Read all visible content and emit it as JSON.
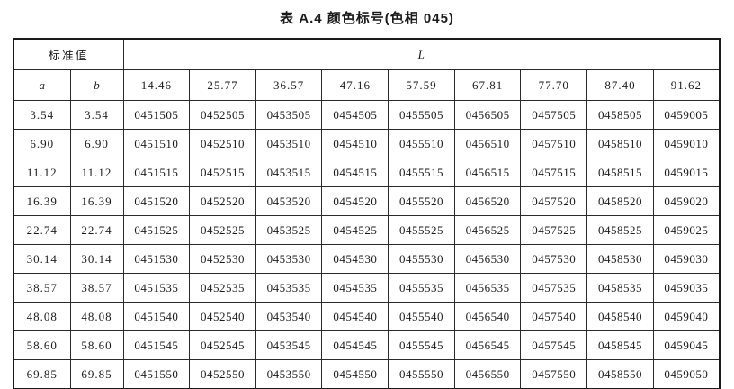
{
  "title": "表 A.4  颜色标号(色相 045)",
  "table": {
    "std_header": "标准值",
    "l_header": "L",
    "a_header": "a",
    "b_header": "b",
    "l_values": [
      "14.46",
      "25.77",
      "36.57",
      "47.16",
      "57.59",
      "67.81",
      "77.70",
      "87.40",
      "91.62"
    ],
    "rows": [
      {
        "a": "3.54",
        "b": "3.54",
        "codes": [
          "0451505",
          "0452505",
          "0453505",
          "0454505",
          "0455505",
          "0456505",
          "0457505",
          "0458505",
          "0459005"
        ]
      },
      {
        "a": "6.90",
        "b": "6.90",
        "codes": [
          "0451510",
          "0452510",
          "0453510",
          "0454510",
          "0455510",
          "0456510",
          "0457510",
          "0458510",
          "0459010"
        ]
      },
      {
        "a": "11.12",
        "b": "11.12",
        "codes": [
          "0451515",
          "0452515",
          "0453515",
          "0454515",
          "0455515",
          "0456515",
          "0457515",
          "0458515",
          "0459015"
        ]
      },
      {
        "a": "16.39",
        "b": "16.39",
        "codes": [
          "0451520",
          "0452520",
          "0453520",
          "0454520",
          "0455520",
          "0456520",
          "0457520",
          "0458520",
          "0459020"
        ]
      },
      {
        "a": "22.74",
        "b": "22.74",
        "codes": [
          "0451525",
          "0452525",
          "0453525",
          "0454525",
          "0455525",
          "0456525",
          "0457525",
          "0458525",
          "0459025"
        ]
      },
      {
        "a": "30.14",
        "b": "30.14",
        "codes": [
          "0451530",
          "0452530",
          "0453530",
          "0454530",
          "0455530",
          "0456530",
          "0457530",
          "0458530",
          "0459030"
        ]
      },
      {
        "a": "38.57",
        "b": "38.57",
        "codes": [
          "0451535",
          "0452535",
          "0453535",
          "0454535",
          "0455535",
          "0456535",
          "0457535",
          "0458535",
          "0459035"
        ]
      },
      {
        "a": "48.08",
        "b": "48.08",
        "codes": [
          "0451540",
          "0452540",
          "0453540",
          "0454540",
          "0455540",
          "0456540",
          "0457540",
          "0458540",
          "0459040"
        ]
      },
      {
        "a": "58.60",
        "b": "58.60",
        "codes": [
          "0451545",
          "0452545",
          "0453545",
          "0454545",
          "0455545",
          "0456545",
          "0457545",
          "0458545",
          "0459045"
        ]
      },
      {
        "a": "69.85",
        "b": "69.85",
        "codes": [
          "0451550",
          "0452550",
          "0453550",
          "0454550",
          "0455550",
          "0456550",
          "0457550",
          "0458550",
          "0459050"
        ]
      }
    ]
  }
}
